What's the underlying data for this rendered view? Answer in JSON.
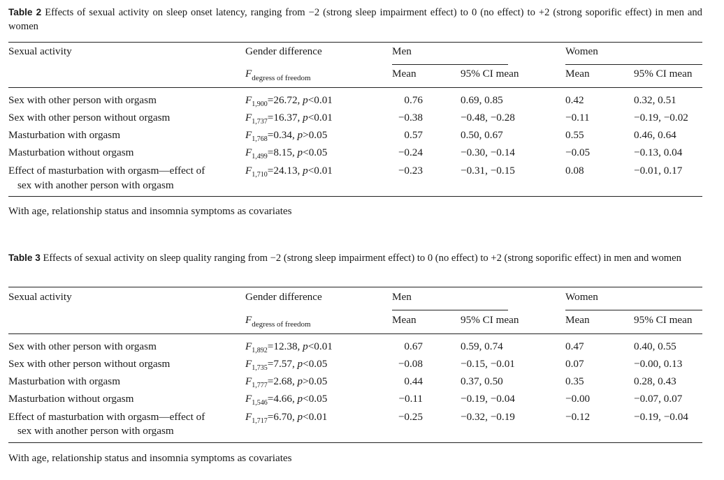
{
  "tables": [
    {
      "label": "Table 2",
      "caption": "Effects of sexual activity on sleep onset latency, ranging from −2 (strong sleep impairment effect) to 0 (no effect) to +2 (strong soporific effect) in men and women",
      "headers": {
        "sexual_activity": "Sexual activity",
        "gender_difference": "Gender difference",
        "f_symbol": "F",
        "f_subscript": "degress of freedom",
        "men": "Men",
        "women": "Women",
        "mean": "Mean",
        "ci": "95% CI mean"
      },
      "rows": [
        {
          "activity": "Sex with other person with orgasm",
          "df": "1,900",
          "f": "26.72",
          "p_op": "<",
          "p": "0.01",
          "men_mean": "0.76",
          "men_ci": "0.69, 0.85",
          "women_mean": "0.42",
          "women_ci": "0.32, 0.51"
        },
        {
          "activity": "Sex with other person without orgasm",
          "df": "1,737",
          "f": "16.37",
          "p_op": "<",
          "p": "0.01",
          "men_mean": "−0.38",
          "men_ci": "−0.48, −0.28",
          "women_mean": "−0.11",
          "women_ci": "−0.19, −0.02"
        },
        {
          "activity": "Masturbation with orgasm",
          "df": "1,768",
          "f": "0.34",
          "p_op": ">",
          "p": "0.05",
          "men_mean": "0.57",
          "men_ci": "0.50, 0.67",
          "women_mean": "0.55",
          "women_ci": "0.46, 0.64"
        },
        {
          "activity": "Masturbation without orgasm",
          "df": "1,499",
          "f": "8.15",
          "p_op": "<",
          "p": "0.05",
          "men_mean": "−0.24",
          "men_ci": "−0.30, −0.14",
          "women_mean": "−0.05",
          "women_ci": "−0.13, 0.04"
        },
        {
          "activity": "Effect of masturbation with orgasm—effect of",
          "activity_line2": "sex with another person with orgasm",
          "df": "1,710",
          "f": "24.13",
          "p_op": "<",
          "p": "0.01",
          "men_mean": "−0.23",
          "men_ci": "−0.31, −0.15",
          "women_mean": "0.08",
          "women_ci": "−0.01, 0.17"
        }
      ],
      "footnote": "With age, relationship status and insomnia symptoms as covariates"
    },
    {
      "label": "Table 3",
      "caption": "Effects of sexual activity on sleep quality ranging from −2 (strong sleep impairment effect) to 0 (no effect) to +2 (strong soporific effect) in men and women",
      "headers": {
        "sexual_activity": "Sexual activity",
        "gender_difference": "Gender difference",
        "f_symbol": "F",
        "f_subscript": "degress of freedom",
        "men": "Men",
        "women": "Women",
        "mean": "Mean",
        "ci": "95% CI mean"
      },
      "rows": [
        {
          "activity": "Sex with other person with orgasm",
          "df": "1,892",
          "f": "12.38",
          "p_op": "<",
          "p": "0.01",
          "men_mean": "0.67",
          "men_ci": "0.59, 0.74",
          "women_mean": "0.47",
          "women_ci": "0.40, 0.55"
        },
        {
          "activity": "Sex with other person without orgasm",
          "df": "1,735",
          "f": "7.57",
          "p_op": "<",
          "p": "0.05",
          "men_mean": "−0.08",
          "men_ci": "−0.15, −0.01",
          "women_mean": "0.07",
          "women_ci": "−0.00, 0.13"
        },
        {
          "activity": "Masturbation with orgasm",
          "df": "1,777",
          "f": "2.68",
          "p_op": ">",
          "p": "0.05",
          "men_mean": "0.44",
          "men_ci": "0.37, 0.50",
          "women_mean": "0.35",
          "women_ci": "0.28, 0.43"
        },
        {
          "activity": "Masturbation without orgasm",
          "df": "1,546",
          "f": "4.66",
          "p_op": "<",
          "p": "0.05",
          "men_mean": "−0.11",
          "men_ci": "−0.19, −0.04",
          "women_mean": "−0.00",
          "women_ci": "−0.07, 0.07"
        },
        {
          "activity": "Effect of masturbation with orgasm—effect of",
          "activity_line2": "sex with another person with orgasm",
          "df": "1,717",
          "f": "6.70",
          "p_op": "<",
          "p": "0.01",
          "men_mean": "−0.25",
          "men_ci": "−0.32, −0.19",
          "women_mean": "−0.12",
          "women_ci": "−0.19, −0.04"
        }
      ],
      "footnote": "With age, relationship status and insomnia symptoms as covariates"
    }
  ]
}
